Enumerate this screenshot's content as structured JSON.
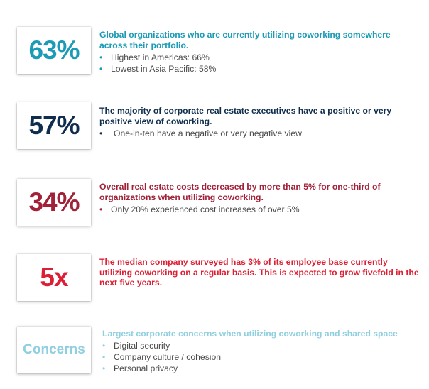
{
  "colors": {
    "teal": "#1b9bb5",
    "navy": "#0f2d4d",
    "maroon": "#a12138",
    "red": "#dc1f34",
    "light_blue": "#8fcfe0",
    "bullet_text": "#4a4a4a"
  },
  "stats": [
    {
      "value": "63%",
      "headline": "Global organizations who are currently utilizing coworking somewhere across their portfolio.",
      "bullets": [
        "Highest in Americas: 66%",
        "Lowest in Asia Pacific: 58%"
      ]
    },
    {
      "value": "57%",
      "headline": "The majority of corporate real estate executives have a positive or very positive view of coworking.",
      "bullets": [
        "One-in-ten have a negative or very negative view"
      ]
    },
    {
      "value": "34%",
      "headline": "Overall real estate costs decreased by more than 5% for one-third of organizations when utilizing coworking.",
      "bullets": [
        "Only 20% experienced cost increases of over 5%"
      ]
    },
    {
      "value": "5x",
      "headline": "The median company surveyed has 3% of its employee base currently utilizing coworking on a regular basis. This is expected to grow fivefold in the next five years.",
      "bullets": []
    },
    {
      "value": "Concerns",
      "headline": "Largest corporate concerns when utilizing coworking and shared space",
      "bullets": [
        "Digital security",
        "Company culture / cohesion",
        "Personal privacy"
      ]
    }
  ]
}
